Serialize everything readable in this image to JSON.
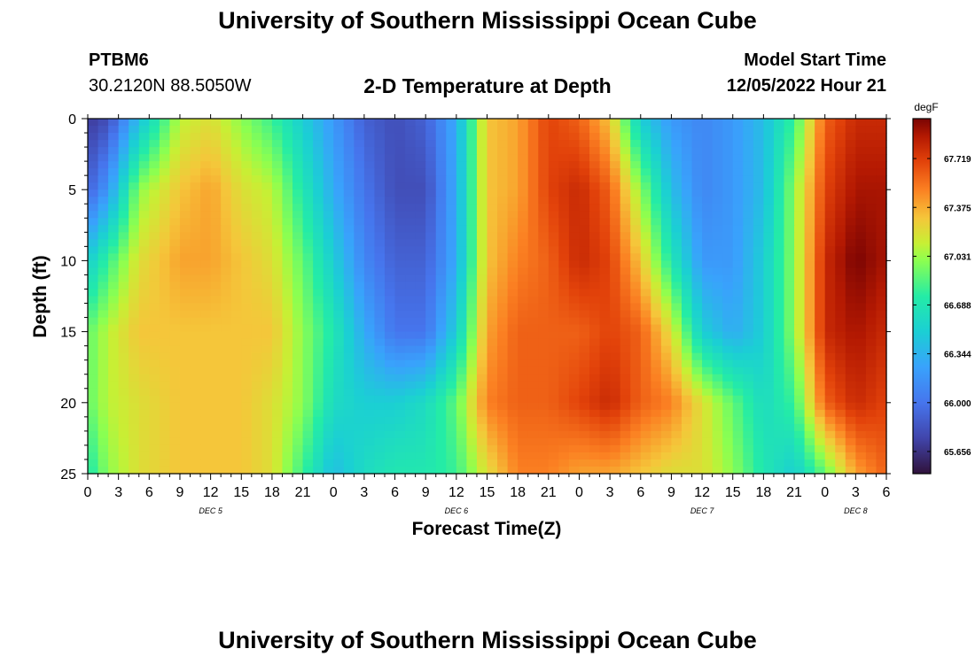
{
  "page": {
    "title": "University of Southern Mississippi Ocean Cube",
    "title_repeat": "University of Southern Mississippi Ocean Cube",
    "station_id": "PTBM6",
    "coordinates": "30.2120N  88.5050W",
    "model_start_label": "Model Start Time",
    "model_start_value": "12/05/2022 Hour 21"
  },
  "chart_data": {
    "type": "heatmap",
    "title": "2-D Temperature at Depth",
    "xlabel": "Forecast Time(Z)",
    "ylabel": "Depth (ft)",
    "x_range_hours": [
      0,
      78
    ],
    "y_range_ft": [
      0,
      25
    ],
    "y_ticks": [
      "0",
      "5",
      "10",
      "15",
      "20",
      "25"
    ],
    "x_ticks": [
      "0",
      "3",
      "6",
      "9",
      "12",
      "15",
      "18",
      "21",
      "0",
      "3",
      "6",
      "9",
      "12",
      "15",
      "18",
      "21",
      "0",
      "3",
      "6",
      "9",
      "12",
      "15",
      "18",
      "21",
      "0",
      "3",
      "6"
    ],
    "day_labels": [
      {
        "label": "DEC 5",
        "hour": 12
      },
      {
        "label": "DEC 6",
        "hour": 36
      },
      {
        "label": "DEC 7",
        "hour": 60
      },
      {
        "label": "DEC 8",
        "hour": 75
      }
    ],
    "colorbar": {
      "unit": "degF",
      "min": 65.5,
      "max": 68.0,
      "ticks": [
        "67.719",
        "67.375",
        "67.031",
        "66.688",
        "66.344",
        "66.000",
        "65.656"
      ],
      "tick_values": [
        67.719,
        67.375,
        67.031,
        66.688,
        66.344,
        66.0,
        65.656
      ]
    },
    "depth_levels_ft": [
      0,
      5,
      10,
      15,
      20,
      25
    ],
    "time_knots_hours": [
      0,
      2,
      5,
      9,
      12,
      15,
      18,
      21,
      24,
      27,
      30,
      33,
      36,
      39,
      42,
      45,
      48,
      51,
      54,
      57,
      60,
      63,
      66,
      69,
      72,
      75,
      78
    ],
    "temperature_degF": [
      [
        65.7,
        65.8,
        66.4,
        67.1,
        67.2,
        67.0,
        66.8,
        66.5,
        66.2,
        65.9,
        65.8,
        65.9,
        66.3,
        67.3,
        67.4,
        67.7,
        67.6,
        67.3,
        66.5,
        66.2,
        66.1,
        66.2,
        66.4,
        66.8,
        67.6,
        67.8,
        67.8
      ],
      [
        65.9,
        66.2,
        67.0,
        67.3,
        67.4,
        67.2,
        67.1,
        66.7,
        66.3,
        66.0,
        65.8,
        65.8,
        66.3,
        67.3,
        67.4,
        67.7,
        67.8,
        67.6,
        67.0,
        66.4,
        66.1,
        66.2,
        66.4,
        67.0,
        67.7,
        67.9,
        67.9
      ],
      [
        66.5,
        66.8,
        67.2,
        67.4,
        67.4,
        67.3,
        67.2,
        66.9,
        66.5,
        66.1,
        65.9,
        65.9,
        66.3,
        67.3,
        67.5,
        67.6,
        67.8,
        67.7,
        67.3,
        66.7,
        66.2,
        66.2,
        66.5,
        67.0,
        67.8,
        68.0,
        67.9
      ],
      [
        66.9,
        67.1,
        67.3,
        67.3,
        67.3,
        67.3,
        67.3,
        67.0,
        66.7,
        66.3,
        66.0,
        66.0,
        66.5,
        67.4,
        67.6,
        67.6,
        67.6,
        67.7,
        67.6,
        67.2,
        66.5,
        66.3,
        66.5,
        67.0,
        67.8,
        67.9,
        67.8
      ],
      [
        66.9,
        67.1,
        67.2,
        67.3,
        67.3,
        67.3,
        67.2,
        67.0,
        66.6,
        66.5,
        66.5,
        66.6,
        66.9,
        67.5,
        67.6,
        67.6,
        67.7,
        67.8,
        67.6,
        67.5,
        67.2,
        66.9,
        66.6,
        66.8,
        67.6,
        67.8,
        67.7
      ],
      [
        66.7,
        67.0,
        67.2,
        67.3,
        67.3,
        67.3,
        67.2,
        66.8,
        66.4,
        66.6,
        66.7,
        66.7,
        66.8,
        67.2,
        67.5,
        67.5,
        67.4,
        67.4,
        67.3,
        67.2,
        67.2,
        67.0,
        66.7,
        66.5,
        66.9,
        67.4,
        67.6
      ]
    ]
  }
}
